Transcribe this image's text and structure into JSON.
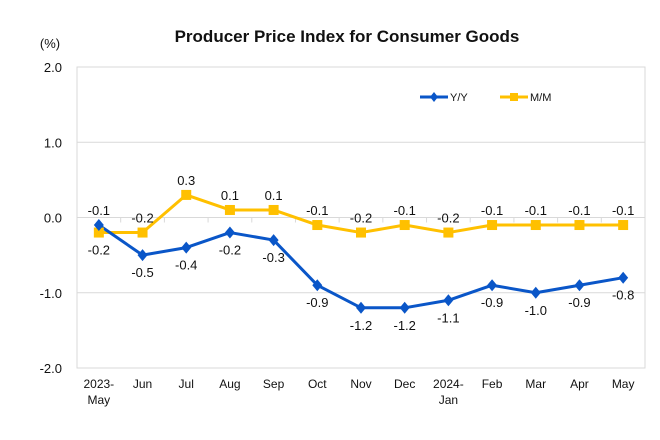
{
  "chart_data": {
    "type": "line",
    "title": "Producer Price Index for Consumer Goods",
    "ylabel": "(%)",
    "xlabel": "",
    "ylim": [
      -2.0,
      2.0
    ],
    "yticks": [
      "2.0",
      "1.0",
      "0.0",
      "-1.0",
      "-2.0"
    ],
    "ytick_values": [
      2.0,
      1.0,
      0.0,
      -1.0,
      -2.0
    ],
    "grid": "horizontal",
    "legend_position": "top-right",
    "categories": [
      [
        "2023-",
        "May"
      ],
      [
        "Jun"
      ],
      [
        "Jul"
      ],
      [
        "Aug"
      ],
      [
        "Sep"
      ],
      [
        "Oct"
      ],
      [
        "Nov"
      ],
      [
        "Dec"
      ],
      [
        "2024-",
        "Jan"
      ],
      [
        "Feb"
      ],
      [
        "Mar"
      ],
      [
        "Apr"
      ],
      [
        "May"
      ]
    ],
    "series": [
      {
        "name": "Y/Y",
        "color": "#0a56c8",
        "marker": "diamond",
        "values": [
          -0.1,
          -0.5,
          -0.4,
          -0.2,
          -0.3,
          -0.9,
          -1.2,
          -1.2,
          -1.1,
          -0.9,
          -1.0,
          -0.9,
          -0.8
        ]
      },
      {
        "name": "M/M",
        "color": "#ffc000",
        "marker": "square",
        "values": [
          -0.2,
          -0.2,
          0.3,
          0.1,
          0.1,
          -0.1,
          -0.2,
          -0.1,
          -0.2,
          -0.1,
          -0.1,
          -0.1,
          -0.1
        ]
      }
    ]
  }
}
